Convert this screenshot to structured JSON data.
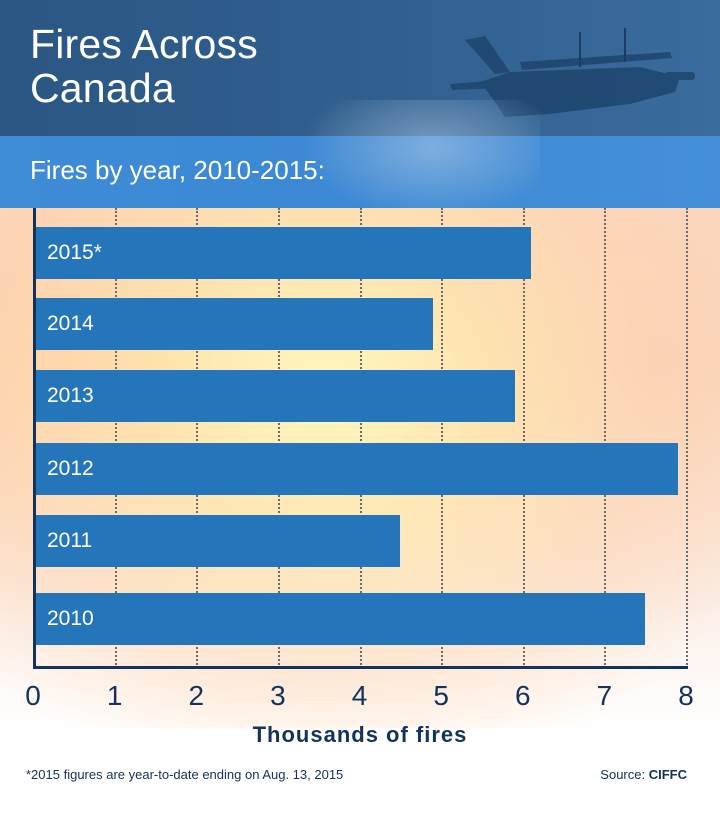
{
  "header": {
    "title_line1": "Fires Across",
    "title_line2": "Canada",
    "image": "water-bomber-plane-icon"
  },
  "subtitle": "Fires by year, 2010-2015:",
  "colors": {
    "header_bg": "#2e5a87",
    "subtitle_bg": "#3d8ad6",
    "bar": "#2475ba",
    "axis": "#13335a"
  },
  "chart_data": {
    "type": "bar",
    "orientation": "horizontal",
    "title": "Fires by year, 2010-2015:",
    "categories": [
      "2015*",
      "2014",
      "2013",
      "2012",
      "2011",
      "2010"
    ],
    "values": [
      6.1,
      4.9,
      5.9,
      7.9,
      4.5,
      7.5
    ],
    "xlabel": "Thousands of fires",
    "ylabel": "",
    "xlim": [
      0,
      8
    ],
    "xticks": [
      "0",
      "1",
      "2",
      "3",
      "4",
      "5",
      "6",
      "7",
      "8"
    ],
    "grid": "vertical dotted",
    "legend": "none"
  },
  "footer": {
    "footnote": "*2015 figures are year-to-date ending on Aug. 13, 2015",
    "source_prefix": "Source: ",
    "source_name": "CIFFC"
  }
}
